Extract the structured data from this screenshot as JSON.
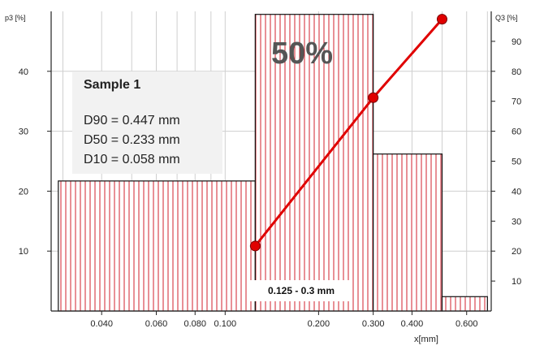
{
  "colors": {
    "bar_stroke": "#c00000",
    "hatch": "#d0202e",
    "curve": "#e00000",
    "grid": "#cfcfcf",
    "info_bg": "#f2f2f2"
  },
  "sample_box": {
    "title": "Sample 1",
    "lines": [
      "D90 = 0.447 mm",
      "D50 = 0.233 mm",
      "D10 = 0.058 mm"
    ]
  },
  "highlight_label": "50%",
  "range_label": "0.125 - 0.3 mm",
  "chart_data": {
    "type": "bar",
    "x_scale": "log",
    "xlabel": "x[mm]",
    "ylabel_left": "p3 [%]",
    "ylabel_right": "Q3 [%]",
    "ylim_left": [
      0,
      50
    ],
    "ylim_right": [
      0,
      100
    ],
    "x_ticks": [
      {
        "value": 0.04,
        "label": "0.040"
      },
      {
        "value": 0.06,
        "label": "0.060"
      },
      {
        "value": 0.08,
        "label": "0.080"
      },
      {
        "value": 0.1,
        "label": "0.100"
      },
      {
        "value": 0.2,
        "label": "0.200"
      },
      {
        "value": 0.3,
        "label": "0.300"
      },
      {
        "value": 0.4,
        "label": "0.400"
      },
      {
        "value": 0.6,
        "label": "0.600"
      }
    ],
    "y_ticks_left": [
      10,
      20,
      30,
      40
    ],
    "y_ticks_right": [
      10,
      20,
      30,
      40,
      50,
      60,
      70,
      80,
      90
    ],
    "bins": [
      {
        "from": 0.029,
        "to": 0.125,
        "value": 21.7
      },
      {
        "from": 0.125,
        "to": 0.3,
        "value": 49.5
      },
      {
        "from": 0.3,
        "to": 0.5,
        "value": 26.2
      },
      {
        "from": 0.5,
        "to": 0.7,
        "value": 2.4
      }
    ],
    "cumulative": {
      "x": [
        0.125,
        0.3,
        0.5
      ],
      "y": [
        21.7,
        71.2,
        97.4
      ]
    },
    "grid": true
  }
}
